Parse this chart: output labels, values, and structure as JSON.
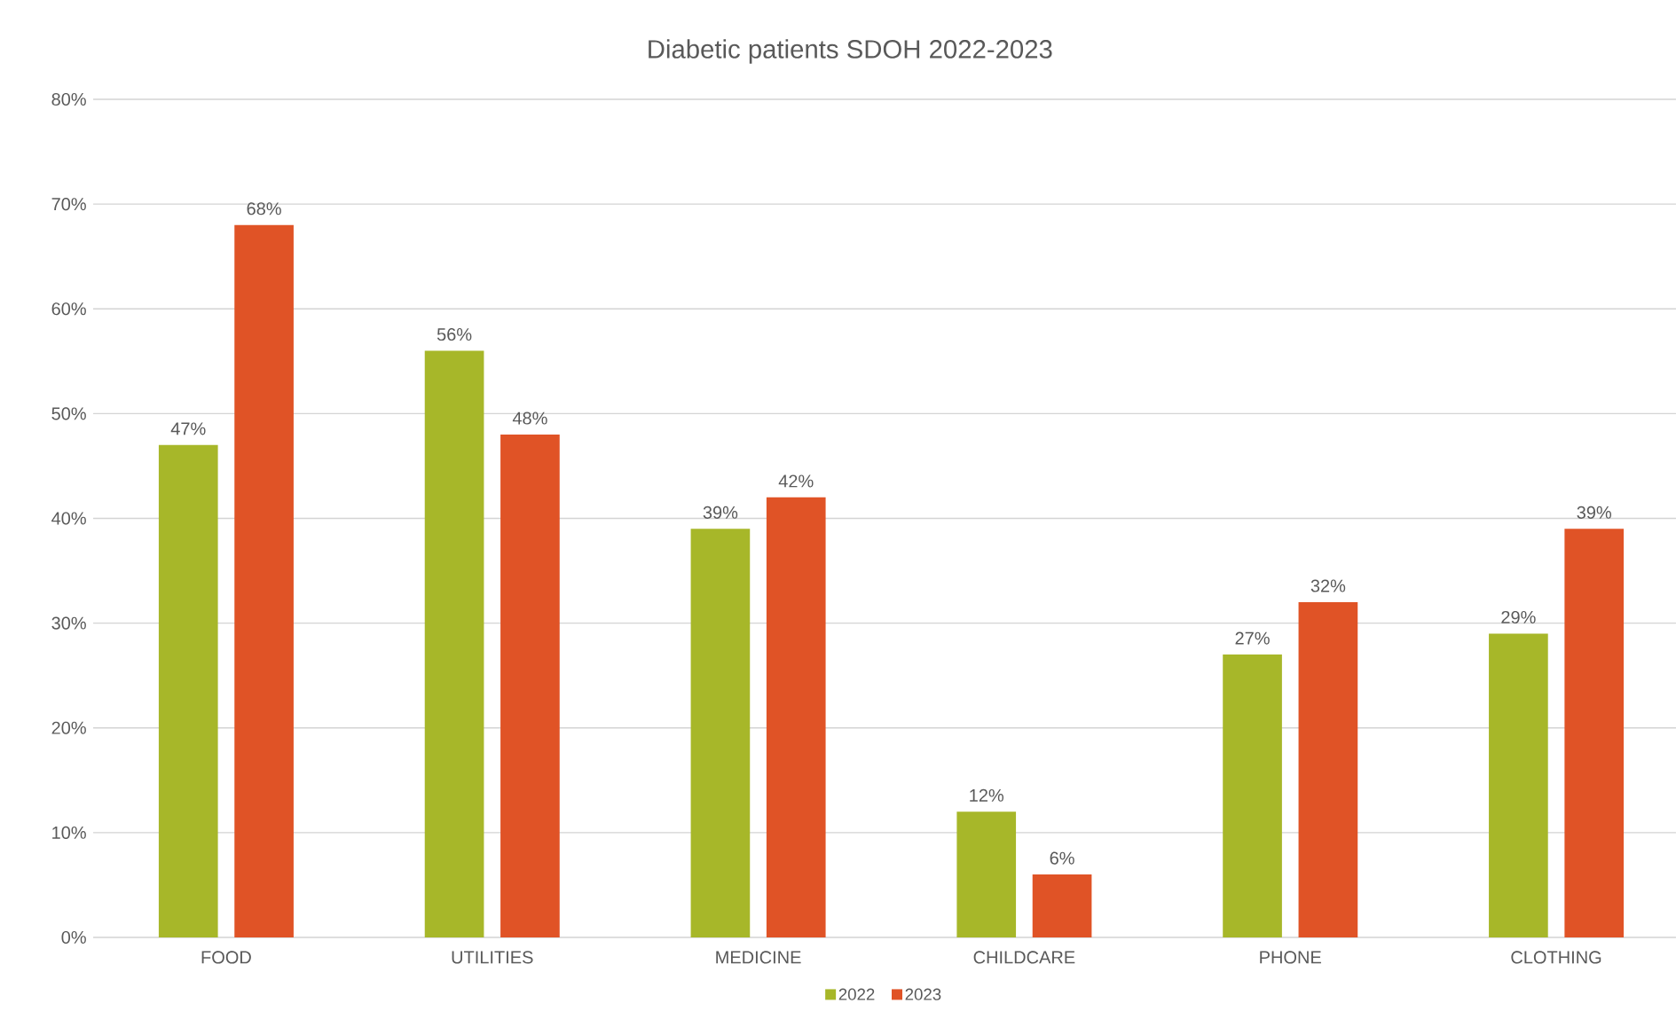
{
  "chart_data": {
    "type": "bar",
    "title": "Diabetic patients SDOH 2022-2023",
    "categories": [
      "FOOD",
      "UTILITIES",
      "MEDICINE",
      "CHILDCARE",
      "PHONE",
      "CLOTHING"
    ],
    "series": [
      {
        "name": "2022",
        "color": "#a7b729",
        "values": [
          47,
          56,
          39,
          12,
          27,
          29
        ],
        "value_labels": [
          "47%",
          "56%",
          "39%",
          "12%",
          "27%",
          "29%"
        ]
      },
      {
        "name": "2023",
        "color": "#e05326",
        "values": [
          68,
          48,
          42,
          6,
          32,
          39
        ],
        "value_labels": [
          "68%",
          "48%",
          "42%",
          "6%",
          "32%",
          "39%"
        ]
      }
    ],
    "ylim": [
      0,
      80
    ],
    "yticks": [
      {
        "value": 0,
        "label": "0%"
      },
      {
        "value": 10,
        "label": "10%"
      },
      {
        "value": 20,
        "label": "20%"
      },
      {
        "value": 30,
        "label": "30%"
      },
      {
        "value": 40,
        "label": "40%"
      },
      {
        "value": 50,
        "label": "50%"
      },
      {
        "value": 60,
        "label": "60%"
      },
      {
        "value": 70,
        "label": "70%"
      },
      {
        "value": 80,
        "label": "80%"
      }
    ],
    "grid": "y",
    "legend": "bottom"
  }
}
